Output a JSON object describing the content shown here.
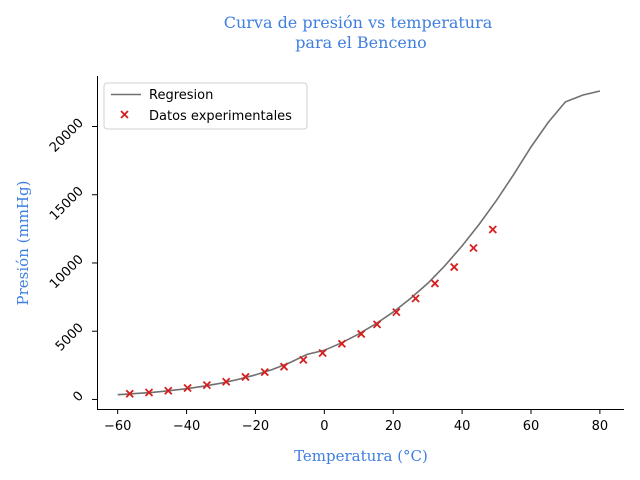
{
  "chart_data": {
    "type": "scatter",
    "title_lines": [
      "Curva de presión vs temperatura",
      "para el Benceno"
    ],
    "xlabel": "Temperatura (°C)",
    "ylabel": "Presión (mmHg)",
    "xlim": [
      -66,
      87
    ],
    "ylim": [
      -700,
      23700
    ],
    "x_ticks": [
      -60,
      -40,
      -20,
      0,
      20,
      40,
      60,
      80
    ],
    "y_ticks": [
      0,
      5000,
      10000,
      15000,
      20000
    ],
    "x_tick_labels": [
      "−60",
      "−40",
      "−20",
      "0",
      "20",
      "40",
      "60",
      "80"
    ],
    "y_tick_labels": [
      "0",
      "5000",
      "10000",
      "15000",
      "20000"
    ],
    "grid": false,
    "legend_position": "top-left",
    "series": [
      {
        "name": "Regresion",
        "kind": "line",
        "color": "#707070",
        "x": [
          -60,
          -55,
          -50,
          -45,
          -40,
          -35,
          -30,
          -25,
          -20,
          -15,
          -10,
          -5,
          0,
          5,
          10,
          15,
          20,
          25,
          30,
          35,
          40,
          45,
          50,
          55,
          60,
          65,
          70,
          75,
          80
        ],
        "y": [
          350,
          430,
          520,
          640,
          790,
          970,
          1190,
          1470,
          1800,
          2200,
          2700,
          3300,
          3600,
          4150,
          4800,
          5550,
          6400,
          7400,
          8500,
          9800,
          11250,
          12850,
          14600,
          16500,
          18500,
          20300,
          21800,
          22300,
          22600
        ]
      },
      {
        "name": "Datos experimentales",
        "kind": "scatter",
        "marker": "x",
        "color": "#d62020",
        "x": [
          -56.5,
          -50.9,
          -45.3,
          -39.7,
          -34.1,
          -28.5,
          -22.9,
          -17.3,
          -11.7,
          -6.1,
          -0.5,
          5.1,
          10.7,
          15.3,
          20.9,
          26.5,
          32.1,
          37.7,
          43.3,
          48.9
        ],
        "y": [
          420,
          510,
          640,
          840,
          1050,
          1300,
          1650,
          2000,
          2400,
          2900,
          3400,
          4080,
          4800,
          5500,
          6400,
          7400,
          8500,
          9700,
          11100,
          12450
        ]
      }
    ]
  }
}
